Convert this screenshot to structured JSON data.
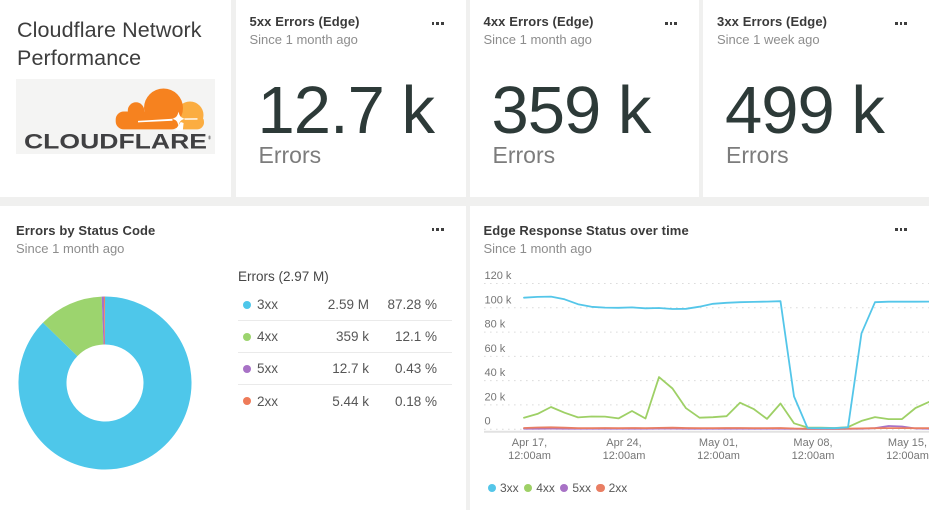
{
  "page": {
    "background": "#f0f0ef",
    "card_background": "#ffffff"
  },
  "title_card": {
    "title": "Cloudflare Network Performance",
    "logo": {
      "wordmark": "CLOUDFLARE",
      "cloud_front_color": "#f6821f",
      "cloud_back_color": "#fbad41",
      "wordmark_color": "#404042"
    }
  },
  "billboards": [
    {
      "title": "5xx Errors (Edge)",
      "subtitle": "Since 1 month ago",
      "value": "12.7 k",
      "label": "Errors"
    },
    {
      "title": "4xx Errors (Edge)",
      "subtitle": "Since 1 month ago",
      "value": "359 k",
      "label": "Errors"
    },
    {
      "title": "3xx Errors (Edge)",
      "subtitle": "Since 1 week ago",
      "value": "499 k",
      "label": "Errors"
    }
  ],
  "donut_card": {
    "title": "Errors by Status Code",
    "subtitle": "Since 1 month ago",
    "legend_title": "Errors (2.97 M)"
  },
  "timeseries_card": {
    "title": "Edge Response Status over time",
    "subtitle": "Since 1 month ago"
  },
  "chart_data": [
    {
      "id": "errors_by_status_code",
      "type": "pie",
      "title": "Errors (2.97 M)",
      "donut": true,
      "slices": [
        {
          "label": "3xx",
          "value_label": "2.59 M",
          "value": 2590000,
          "pct": 87.28,
          "pct_label": "87.28 %",
          "color": "#4ec7ea"
        },
        {
          "label": "4xx",
          "value_label": "359 k",
          "value": 359000,
          "pct": 12.1,
          "pct_label": "12.1 %",
          "color": "#9cd46e"
        },
        {
          "label": "5xx",
          "value_label": "12.7 k",
          "value": 12700,
          "pct": 0.43,
          "pct_label": "0.43 %",
          "color": "#a872c6"
        },
        {
          "label": "2xx",
          "value_label": "5.44 k",
          "value": 5440,
          "pct": 0.18,
          "pct_label": "0.18 %",
          "color": "#ee7b59"
        }
      ]
    },
    {
      "id": "edge_response_status_over_time",
      "type": "line",
      "title": "Edge Response Status over time",
      "ylabel": "",
      "xlabel": "",
      "ylim_k": [
        0,
        120
      ],
      "y_ticks": [
        {
          "v": 0,
          "label": "0"
        },
        {
          "v": 20,
          "label": "20 k"
        },
        {
          "v": 40,
          "label": "40 k"
        },
        {
          "v": 60,
          "label": "60 k"
        },
        {
          "v": 80,
          "label": "80 k"
        },
        {
          "v": 100,
          "label": "100 k"
        },
        {
          "v": 120,
          "label": "120 k"
        }
      ],
      "x_ticks": [
        {
          "line1": "Apr 17,",
          "line2": "12:00am"
        },
        {
          "line1": "Apr 24,",
          "line2": "12:00am"
        },
        {
          "line1": "May 01,",
          "line2": "12:00am"
        },
        {
          "line1": "May 08,",
          "line2": "12:00am"
        },
        {
          "line1": "May 15,",
          "line2": "12:00am"
        }
      ],
      "grid": "horizontal-dashed",
      "legend_position": "bottom-left",
      "series": [
        {
          "name": "5xx",
          "color": "#a872c6",
          "values_k": [
            0.4,
            0.4,
            0.5,
            0.4,
            0.4,
            0.4,
            0.4,
            0.4,
            0.4,
            0.4,
            0.5,
            0.5,
            0.4,
            0.4,
            0.4,
            0.4,
            0.4,
            0.4,
            0.4,
            0.4,
            0.3,
            0.2,
            0.2,
            0.2,
            0.3,
            0.4,
            0.8,
            2.6,
            2.2,
            0.6,
            0.4
          ]
        },
        {
          "name": "2xx",
          "color": "#e97e63",
          "values_k": [
            1.0,
            1.4,
            1.6,
            1.2,
            0.9,
            0.9,
            1.0,
            0.9,
            1.0,
            0.9,
            1.1,
            1.2,
            1.0,
            0.9,
            0.9,
            1.0,
            1.0,
            0.9,
            0.9,
            1.0,
            0.6,
            0.4,
            0.4,
            0.4,
            0.5,
            0.7,
            0.8,
            0.9,
            0.9,
            0.8,
            0.9
          ]
        },
        {
          "name": "4xx",
          "color": "#9ed066",
          "values_k": [
            9.5,
            12.6,
            18.3,
            13.6,
            9.7,
            10.5,
            10.4,
            8.9,
            15.0,
            8.8,
            42.9,
            33.5,
            17.3,
            9.5,
            9.9,
            10.7,
            21.8,
            16.7,
            8.5,
            21.2,
            4.9,
            1.4,
            1.2,
            1.0,
            1.7,
            6.8,
            10.0,
            8.3,
            8.3,
            17.5,
            22.5
          ]
        },
        {
          "name": "3xx",
          "color": "#54c6e9",
          "values_k": [
            108.3,
            109.0,
            109.2,
            107.0,
            103.0,
            100.8,
            100.2,
            100.0,
            100.3,
            99.6,
            99.8,
            99.0,
            99.2,
            100.9,
            103.3,
            104.1,
            104.6,
            104.9,
            105.1,
            105.4,
            27.0,
            1.0,
            0.8,
            0.8,
            1.5,
            79.0,
            104.6,
            105.0,
            105.0,
            105.0,
            105.1
          ]
        }
      ],
      "legend": [
        {
          "label": "3xx",
          "color": "#54c6e9"
        },
        {
          "label": "4xx",
          "color": "#9ed066"
        },
        {
          "label": "5xx",
          "color": "#a872c6"
        },
        {
          "label": "2xx",
          "color": "#e97e63"
        }
      ]
    }
  ]
}
